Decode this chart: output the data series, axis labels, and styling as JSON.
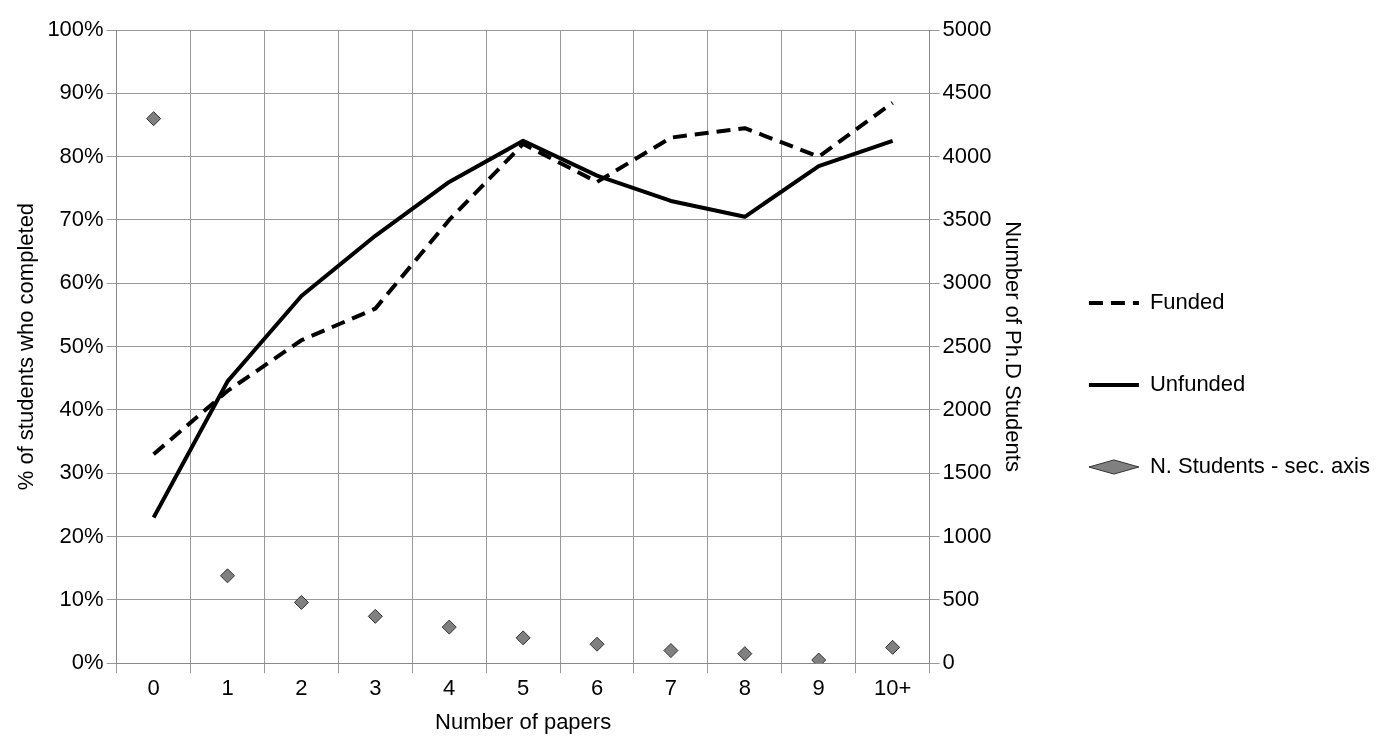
{
  "chart_data": {
    "type": "line",
    "xlabel": "Number of papers",
    "ylabel": "% of students who completed",
    "y2label": "Number of Ph.D Students",
    "categories": [
      "0",
      "1",
      "2",
      "3",
      "4",
      "5",
      "6",
      "7",
      "8",
      "9",
      "10+"
    ],
    "series": [
      {
        "name": "Funded",
        "color": "#000000",
        "line_style": "dashed",
        "values": [
          33,
          43,
          51,
          56,
          70,
          82,
          76,
          83,
          84.5,
          80,
          88.5
        ]
      },
      {
        "name": "Unfunded",
        "color": "#000000",
        "line_style": "solid",
        "values": [
          23,
          44.5,
          58,
          67.5,
          76,
          82.5,
          77,
          73,
          70.5,
          78.5,
          82.5
        ]
      },
      {
        "name": "N. Students - sec. axis",
        "type": "scatter",
        "marker": "diamond",
        "axis": "y2",
        "color": "#808080",
        "values": [
          4300,
          690,
          480,
          370,
          285,
          200,
          150,
          100,
          75,
          25,
          125
        ]
      }
    ],
    "ylim": [
      0,
      100
    ],
    "yticks": [
      {
        "value": 0,
        "label": "0%"
      },
      {
        "value": 10,
        "label": "10%"
      },
      {
        "value": 20,
        "label": "20%"
      },
      {
        "value": 30,
        "label": "30%"
      },
      {
        "value": 40,
        "label": "40%"
      },
      {
        "value": 50,
        "label": "50%"
      },
      {
        "value": 60,
        "label": "60%"
      },
      {
        "value": 70,
        "label": "70%"
      },
      {
        "value": 80,
        "label": "80%"
      },
      {
        "value": 90,
        "label": "90%"
      },
      {
        "value": 100,
        "label": "100%"
      }
    ],
    "y2lim": [
      0,
      5000
    ],
    "y2ticks": [
      0,
      500,
      1000,
      1500,
      2000,
      2500,
      3000,
      3500,
      4000,
      4500,
      5000
    ],
    "grid": true,
    "legend": "right",
    "marker": "none"
  }
}
